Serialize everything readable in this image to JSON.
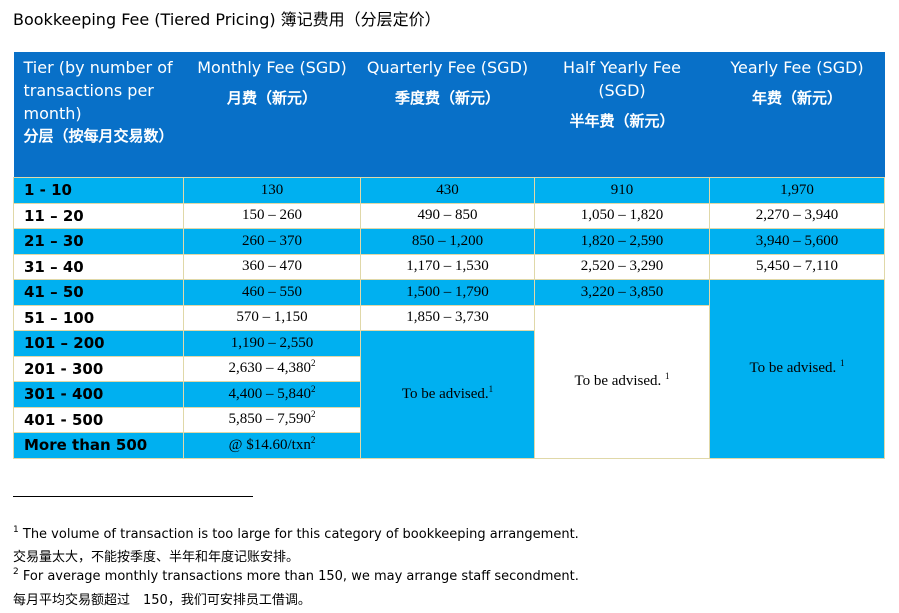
{
  "title": "Bookkeeping Fee (Tiered Pricing) 簿记费用（分层定价）",
  "table": {
    "headers": [
      {
        "en": "Tier (by number of transactions per month)",
        "zh": "分层（按每月交易数）"
      },
      {
        "en": "Monthly Fee (SGD)",
        "zh": "月费（新元）"
      },
      {
        "en": "Quarterly Fee (SGD)",
        "zh": "季度费（新元）"
      },
      {
        "en": "Half Yearly Fee (SGD)",
        "zh": "半年费（新元）"
      },
      {
        "en": "Yearly Fee (SGD)",
        "zh": "年费（新元）"
      }
    ],
    "rows": [
      [
        "1 - 10",
        "130",
        "430",
        "910",
        "1,970"
      ],
      [
        "11 – 20",
        "150 – 260",
        "490 – 850",
        "1,050 – 1,820",
        "2,270 – 3,940"
      ],
      [
        "21 – 30",
        "260 – 370",
        "850 – 1,200",
        "1,820 – 2,590",
        "3,940 – 5,600"
      ],
      [
        "31 – 40",
        "360 – 470",
        "1,170 – 1,530",
        "2,520 – 3,290",
        "5,450 – 7,110"
      ],
      [
        "41 – 50",
        "460 – 550",
        "1,500 – 1,790",
        "3,220 – 3,850",
        {
          "text": "To be advised.",
          "note": "1"
        }
      ],
      [
        "51 – 100",
        "570 – 1,150",
        "1,850 – 3,730",
        {
          "text": "To be advised.",
          "note": "1"
        }
      ],
      [
        "101 – 200",
        "1,190 – 2,550",
        {
          "text": "To be advised.",
          "note": "1"
        }
      ],
      [
        "201 - 300",
        {
          "text": "2,630 – 4,380",
          "note": "2"
        }
      ],
      [
        "301 - 400",
        {
          "text": "4,400 – 5,840",
          "note": "2"
        }
      ],
      [
        "401 - 500",
        {
          "text": "5,850 – 7,590",
          "note": "2"
        }
      ],
      [
        "More than 500",
        {
          "text": "@ $14.60/txn",
          "note": "2"
        }
      ]
    ]
  },
  "footnotes": [
    {
      "mark": "1",
      "en": "The volume of transaction is too large for this category of bookkeeping arrangement.",
      "zh": "交易量太大，不能按季度、半年和年度记账安排。"
    },
    {
      "mark": "2",
      "en": "For average monthly transactions more than 150, we may arrange staff secondment.",
      "zh": "每月平均交易额超过　150，我们可安排员工借调。"
    }
  ]
}
